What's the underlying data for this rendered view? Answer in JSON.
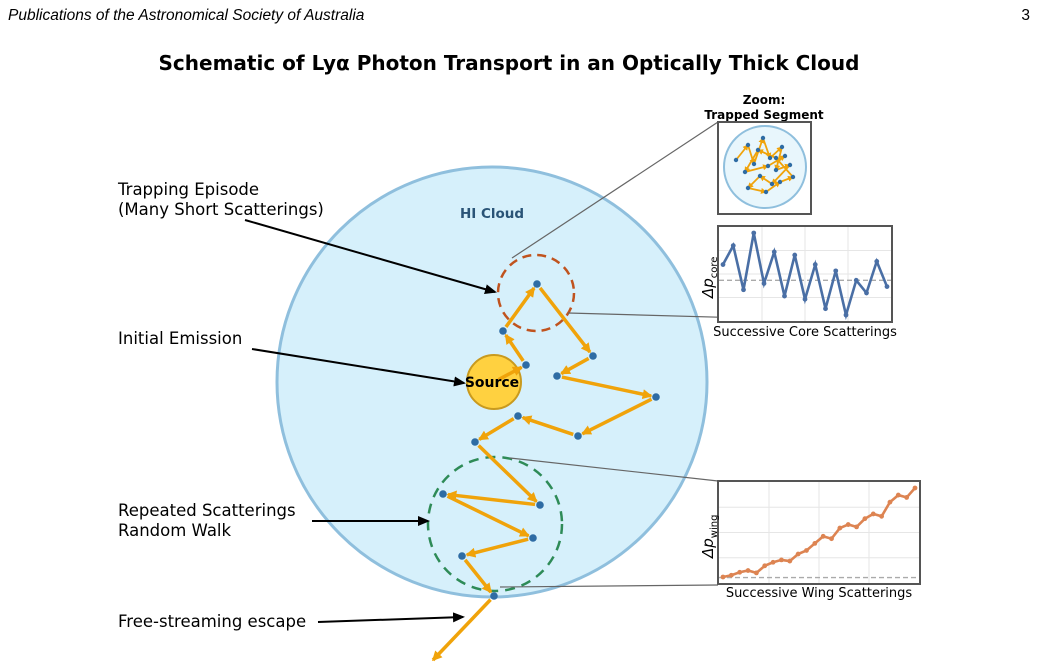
{
  "header": {
    "journal": "Publications of the Astronomical Society of Australia",
    "page_number": "3"
  },
  "figure": {
    "title": "Schematic of Lyα Photon Transport in an Optically Thick Cloud",
    "cloud_label": "HI Cloud",
    "source_label": "Source",
    "annotations": {
      "trapping_line1": "Trapping Episode",
      "trapping_line2": "(Many Short Scatterings)",
      "initial": "Initial Emission",
      "repeated_line1": "Repeated Scatterings",
      "repeated_line2": "Random Walk",
      "escape": "Free-streaming escape"
    },
    "zoom": {
      "title_line1": "Zoom:",
      "title_line2": "Trapped Segment"
    },
    "core_panel": {
      "xlabel": "Successive Core Scatterings",
      "ylabel_main": "Δp",
      "ylabel_sub": "core",
      "values": [
        0.5,
        1.1,
        -0.3,
        1.5,
        -0.1,
        0.9,
        -0.5,
        0.8,
        -0.6,
        0.5,
        -0.9,
        0.3,
        -1.1,
        0.0,
        -0.4,
        0.6,
        -0.2
      ]
    },
    "wing_panel": {
      "xlabel": "Successive Wing Scatterings",
      "ylabel_main": "Δp",
      "ylabel_sub": "wing",
      "values": [
        0.05,
        0.2,
        0.45,
        0.6,
        0.4,
        1.0,
        1.3,
        1.5,
        1.4,
        2.0,
        2.3,
        2.9,
        3.5,
        3.3,
        4.2,
        4.5,
        4.3,
        5.0,
        5.4,
        5.2,
        6.4,
        7.0,
        6.8,
        7.6
      ]
    },
    "colors": {
      "cloud_fill": "#d6f0fb",
      "cloud_stroke": "#8fbfdd",
      "photon_path": "#f0a30a",
      "scatter_point": "#2e6ca4",
      "trap_circle": "#c0531e",
      "walk_circle": "#2e8b57",
      "core_line": "#4a6fa5",
      "wing_line": "#dd8452"
    }
  }
}
